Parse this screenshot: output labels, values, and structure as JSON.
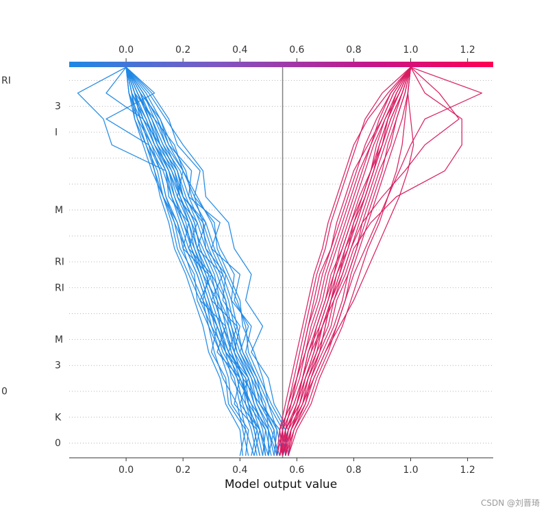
{
  "chart_data": {
    "type": "decision_plot",
    "xlabel": "Model output value",
    "xlim": [
      -0.2,
      1.29
    ],
    "xticks": [
      "0.0",
      "0.2",
      "0.4",
      "0.6",
      "0.8",
      "1.0",
      "1.2"
    ],
    "xtick_values": [
      0.0,
      0.2,
      0.4,
      0.6,
      0.8,
      1.0,
      1.2
    ],
    "base_value": 0.55,
    "colormap": [
      "#1e88e5",
      "#7e57c2",
      "#d81b60",
      "#ff0052"
    ],
    "blue_color": "#1e88e5",
    "pink_color": "#d81b60",
    "baseline_color": "#808080",
    "feature_rows": 15,
    "feature_labels": [
      "RI",
      "3",
      "I",
      "",
      "",
      "M",
      "",
      "RI",
      "RI",
      "",
      "M",
      "3",
      "0",
      "K",
      "0"
    ],
    "samples": [
      {
        "group": "low",
        "end": 0.0,
        "path": [
          0.5,
          0.52,
          0.47,
          0.45,
          0.4,
          0.43,
          0.38,
          0.4,
          0.3,
          0.33,
          0.22,
          0.23,
          0.15,
          0.12,
          0.05,
          0.0
        ]
      },
      {
        "group": "low",
        "end": 0.0,
        "path": [
          0.55,
          0.57,
          0.52,
          0.5,
          0.44,
          0.48,
          0.42,
          0.44,
          0.38,
          0.36,
          0.28,
          0.27,
          0.2,
          0.14,
          0.08,
          0.0
        ]
      },
      {
        "group": "low",
        "end": 0.0,
        "path": [
          0.45,
          0.47,
          0.4,
          0.43,
          0.36,
          0.39,
          0.3,
          0.34,
          0.25,
          0.28,
          0.2,
          0.18,
          0.12,
          0.06,
          -0.07,
          0.0
        ]
      },
      {
        "group": "low",
        "end": 0.0,
        "path": [
          0.4,
          0.42,
          0.36,
          0.35,
          0.3,
          0.32,
          0.27,
          0.29,
          0.2,
          0.22,
          0.15,
          0.14,
          -0.05,
          -0.08,
          -0.17,
          0.0
        ]
      },
      {
        "group": "low",
        "end": 0.0,
        "path": [
          0.52,
          0.53,
          0.48,
          0.46,
          0.42,
          0.44,
          0.37,
          0.38,
          0.33,
          0.3,
          0.25,
          0.2,
          0.17,
          0.1,
          0.03,
          0.0
        ]
      },
      {
        "group": "low",
        "end": 0.0,
        "path": [
          0.48,
          0.49,
          0.45,
          0.43,
          0.38,
          0.4,
          0.34,
          0.35,
          0.28,
          0.27,
          0.2,
          0.16,
          0.1,
          0.07,
          0.02,
          0.0
        ]
      },
      {
        "group": "low",
        "end": 0.0,
        "path": [
          0.56,
          0.55,
          0.5,
          0.48,
          0.45,
          0.41,
          0.4,
          0.36,
          0.32,
          0.31,
          0.24,
          0.26,
          0.18,
          0.15,
          0.09,
          0.0
        ]
      },
      {
        "group": "low",
        "end": 0.0,
        "path": [
          0.44,
          0.46,
          0.38,
          0.4,
          0.32,
          0.35,
          0.26,
          0.3,
          0.22,
          0.25,
          0.18,
          0.2,
          0.14,
          0.11,
          0.06,
          0.0
        ]
      },
      {
        "group": "low",
        "end": 0.0,
        "path": [
          0.5,
          0.47,
          0.44,
          0.4,
          0.37,
          0.34,
          0.31,
          0.28,
          0.24,
          0.2,
          0.16,
          0.13,
          0.08,
          -0.07,
          0.1,
          0.0
        ]
      },
      {
        "group": "low",
        "end": 0.0,
        "path": [
          0.53,
          0.5,
          0.49,
          0.45,
          0.41,
          0.38,
          0.36,
          0.33,
          0.29,
          0.26,
          0.22,
          0.19,
          0.13,
          0.09,
          0.04,
          0.0
        ]
      },
      {
        "group": "low",
        "end": 0.0,
        "path": [
          0.47,
          0.45,
          0.42,
          0.37,
          0.35,
          0.3,
          0.28,
          0.25,
          0.21,
          0.18,
          0.13,
          0.1,
          0.07,
          0.03,
          0.02,
          0.0
        ]
      },
      {
        "group": "low",
        "end": 0.0,
        "path": [
          0.54,
          0.51,
          0.46,
          0.44,
          0.39,
          0.37,
          0.33,
          0.31,
          0.27,
          0.23,
          0.19,
          0.17,
          0.11,
          0.08,
          0.05,
          0.0
        ]
      },
      {
        "group": "low",
        "end": 0.0,
        "path": [
          0.42,
          0.43,
          0.37,
          0.36,
          0.33,
          0.29,
          0.25,
          0.24,
          0.19,
          0.17,
          0.14,
          0.12,
          0.09,
          0.04,
          0.01,
          0.0
        ]
      },
      {
        "group": "low",
        "end": 0.0,
        "path": [
          0.51,
          0.49,
          0.43,
          0.42,
          0.36,
          0.33,
          0.32,
          0.27,
          0.23,
          0.21,
          0.17,
          0.15,
          0.1,
          0.06,
          0.02,
          0.0
        ]
      },
      {
        "group": "low",
        "end": 0.0,
        "path": [
          0.46,
          0.44,
          0.41,
          0.39,
          0.34,
          0.31,
          0.29,
          0.26,
          0.22,
          0.19,
          0.16,
          0.14,
          0.09,
          0.05,
          0.03,
          0.0
        ]
      },
      {
        "group": "low",
        "end": 0.0,
        "path": [
          0.55,
          0.54,
          0.47,
          0.41,
          0.38,
          0.36,
          0.35,
          0.3,
          0.26,
          0.24,
          0.2,
          0.18,
          0.12,
          0.09,
          0.04,
          0.0
        ]
      },
      {
        "group": "low",
        "end": 0.0,
        "path": [
          0.49,
          0.48,
          0.45,
          0.42,
          0.35,
          0.33,
          0.3,
          0.27,
          0.24,
          0.22,
          0.18,
          0.15,
          0.11,
          0.07,
          0.03,
          0.0
        ]
      },
      {
        "group": "low",
        "end": 0.0,
        "path": [
          0.43,
          0.41,
          0.39,
          0.34,
          0.31,
          0.29,
          0.27,
          0.23,
          0.2,
          0.18,
          0.14,
          0.12,
          0.08,
          0.05,
          0.01,
          0.0
        ]
      },
      {
        "group": "low",
        "end": 0.0,
        "path": [
          0.57,
          0.56,
          0.51,
          0.47,
          0.43,
          0.42,
          0.39,
          0.35,
          0.31,
          0.28,
          0.23,
          0.21,
          0.16,
          0.12,
          0.07,
          0.0
        ]
      },
      {
        "group": "low",
        "end": 0.0,
        "path": [
          0.5,
          0.5,
          0.44,
          0.39,
          0.36,
          0.32,
          0.28,
          0.25,
          0.21,
          0.17,
          0.13,
          0.11,
          0.07,
          0.04,
          0.02,
          0.0
        ]
      },
      {
        "group": "low",
        "end": 0.0,
        "path": [
          0.45,
          0.42,
          0.4,
          0.38,
          0.33,
          0.3,
          0.26,
          0.22,
          0.18,
          0.16,
          0.13,
          0.09,
          0.06,
          0.03,
          0.01,
          0.0
        ]
      },
      {
        "group": "low",
        "end": 0.0,
        "path": [
          0.53,
          0.52,
          0.48,
          0.44,
          0.4,
          0.37,
          0.35,
          0.32,
          0.28,
          0.25,
          0.21,
          0.18,
          0.14,
          0.1,
          0.06,
          0.0
        ]
      },
      {
        "group": "low",
        "end": 0.0,
        "path": [
          0.48,
          0.46,
          0.43,
          0.41,
          0.37,
          0.35,
          0.33,
          0.29,
          0.25,
          0.23,
          0.19,
          0.16,
          0.12,
          0.08,
          0.04,
          0.0
        ]
      },
      {
        "group": "low",
        "end": 0.0,
        "path": [
          0.41,
          0.4,
          0.35,
          0.33,
          0.29,
          0.27,
          0.24,
          0.21,
          0.17,
          0.15,
          0.12,
          0.1,
          0.08,
          0.05,
          0.03,
          0.0
        ]
      },
      {
        "group": "low",
        "end": 0.0,
        "path": [
          0.55,
          0.53,
          0.5,
          0.46,
          0.41,
          0.39,
          0.37,
          0.34,
          0.3,
          0.27,
          0.24,
          0.2,
          0.15,
          0.11,
          0.06,
          0.0
        ]
      },
      {
        "group": "low",
        "end": 0.0,
        "path": [
          0.52,
          0.5,
          0.46,
          0.43,
          0.39,
          0.36,
          0.32,
          0.3,
          0.26,
          0.24,
          0.2,
          0.17,
          0.13,
          0.09,
          0.05,
          0.0
        ]
      },
      {
        "group": "low",
        "end": 0.0,
        "path": [
          0.47,
          0.45,
          0.43,
          0.4,
          0.35,
          0.32,
          0.29,
          0.26,
          0.23,
          0.2,
          0.17,
          0.14,
          0.1,
          0.06,
          0.03,
          0.0
        ]
      },
      {
        "group": "low",
        "end": 0.0,
        "path": [
          0.49,
          0.47,
          0.42,
          0.41,
          0.38,
          0.34,
          0.31,
          0.28,
          0.25,
          0.22,
          0.19,
          0.15,
          0.11,
          0.08,
          0.04,
          0.0
        ]
      },
      {
        "group": "high",
        "end": 1.0,
        "path": [
          0.55,
          0.57,
          0.62,
          0.65,
          0.68,
          0.7,
          0.72,
          0.75,
          0.78,
          0.81,
          0.84,
          0.87,
          0.9,
          0.93,
          0.97,
          1.0
        ]
      },
      {
        "group": "high",
        "end": 1.0,
        "path": [
          0.55,
          0.58,
          0.63,
          0.66,
          0.7,
          0.74,
          0.77,
          0.8,
          0.84,
          0.88,
          0.92,
          0.96,
          1.0,
          1.05,
          1.25,
          1.0
        ]
      },
      {
        "group": "high",
        "end": 1.0,
        "path": [
          0.56,
          0.56,
          0.6,
          0.63,
          0.67,
          0.69,
          0.72,
          0.76,
          0.79,
          0.83,
          0.9,
          0.98,
          1.05,
          1.17,
          1.1,
          1.0
        ]
      },
      {
        "group": "high",
        "end": 1.0,
        "path": [
          0.53,
          0.55,
          0.59,
          0.62,
          0.64,
          0.68,
          0.71,
          0.73,
          0.76,
          0.79,
          0.82,
          0.86,
          0.89,
          0.92,
          0.95,
          1.0
        ]
      },
      {
        "group": "high",
        "end": 1.0,
        "path": [
          0.55,
          0.54,
          0.58,
          0.6,
          0.62,
          0.64,
          0.66,
          0.68,
          0.72,
          0.74,
          0.77,
          0.8,
          0.85,
          0.9,
          0.94,
          1.0
        ]
      },
      {
        "group": "high",
        "end": 1.0,
        "path": [
          0.57,
          0.59,
          0.64,
          0.67,
          0.71,
          0.74,
          0.77,
          0.79,
          0.82,
          0.85,
          0.88,
          0.91,
          0.94,
          0.97,
          0.99,
          1.0
        ]
      },
      {
        "group": "high",
        "end": 1.0,
        "path": [
          0.54,
          0.56,
          0.61,
          0.63,
          0.66,
          0.69,
          0.73,
          0.77,
          0.8,
          0.86,
          0.95,
          1.12,
          1.18,
          1.18,
          1.05,
          1.0
        ]
      },
      {
        "group": "high",
        "end": 1.0,
        "path": [
          0.55,
          0.55,
          0.57,
          0.59,
          0.61,
          0.63,
          0.65,
          0.67,
          0.7,
          0.72,
          0.75,
          0.78,
          0.81,
          0.84,
          0.9,
          1.0
        ]
      },
      {
        "group": "high",
        "end": 1.0,
        "path": [
          0.56,
          0.58,
          0.62,
          0.64,
          0.68,
          0.72,
          0.74,
          0.78,
          0.81,
          0.83,
          0.86,
          0.89,
          0.93,
          0.95,
          0.98,
          1.0
        ]
      },
      {
        "group": "high",
        "end": 1.0,
        "path": [
          0.55,
          0.57,
          0.6,
          0.62,
          0.65,
          0.67,
          0.7,
          0.73,
          0.75,
          0.78,
          0.81,
          0.84,
          0.87,
          0.91,
          0.96,
          1.0
        ]
      },
      {
        "group": "high",
        "end": 1.0,
        "path": [
          0.53,
          0.54,
          0.58,
          0.61,
          0.63,
          0.66,
          0.69,
          0.71,
          0.74,
          0.77,
          0.8,
          0.83,
          0.86,
          0.89,
          0.93,
          1.0
        ]
      },
      {
        "group": "high",
        "end": 1.0,
        "path": [
          0.57,
          0.6,
          0.65,
          0.68,
          0.72,
          0.76,
          0.79,
          0.82,
          0.85,
          0.89,
          0.92,
          0.95,
          0.97,
          0.98,
          0.99,
          1.0
        ]
      },
      {
        "group": "high",
        "end": 1.0,
        "path": [
          0.54,
          0.55,
          0.59,
          0.62,
          0.64,
          0.67,
          0.7,
          0.72,
          0.76,
          0.79,
          0.83,
          0.86,
          0.88,
          0.91,
          0.95,
          1.0
        ]
      },
      {
        "group": "high",
        "end": 1.0,
        "path": [
          0.55,
          0.56,
          0.61,
          0.64,
          0.67,
          0.71,
          0.73,
          0.76,
          0.79,
          0.82,
          0.85,
          0.88,
          0.91,
          0.94,
          0.97,
          1.0
        ]
      },
      {
        "group": "high",
        "end": 1.0,
        "path": [
          0.56,
          0.57,
          0.6,
          0.63,
          0.66,
          0.68,
          0.71,
          0.74,
          0.78,
          0.8,
          0.84,
          0.87,
          0.9,
          0.92,
          0.96,
          1.0
        ]
      },
      {
        "group": "high",
        "end": 1.0,
        "path": [
          0.54,
          0.56,
          0.58,
          0.6,
          0.63,
          0.65,
          0.68,
          0.7,
          0.73,
          0.76,
          0.79,
          0.82,
          0.86,
          0.9,
          0.94,
          1.0
        ]
      },
      {
        "group": "high",
        "end": 1.0,
        "path": [
          0.55,
          0.54,
          0.56,
          0.58,
          0.6,
          0.62,
          0.64,
          0.66,
          0.69,
          0.71,
          0.74,
          0.77,
          0.8,
          0.85,
          0.92,
          1.0
        ]
      },
      {
        "group": "high",
        "end": 1.0,
        "path": [
          0.56,
          0.59,
          0.63,
          0.65,
          0.69,
          0.73,
          0.76,
          0.78,
          0.81,
          0.84,
          0.87,
          0.9,
          0.92,
          0.95,
          0.98,
          1.0
        ]
      },
      {
        "group": "high",
        "end": 1.0,
        "path": [
          0.53,
          0.55,
          0.57,
          0.6,
          0.62,
          0.64,
          0.67,
          0.69,
          0.72,
          0.75,
          0.78,
          0.81,
          0.84,
          0.88,
          0.93,
          1.0
        ]
      },
      {
        "group": "high",
        "end": 1.0,
        "path": [
          0.55,
          0.58,
          0.62,
          0.66,
          0.7,
          0.75,
          0.8,
          0.84,
          0.88,
          0.92,
          0.96,
          0.99,
          1.01,
          1.0,
          0.99,
          1.0
        ]
      },
      {
        "group": "high",
        "end": 1.0,
        "path": [
          0.57,
          0.58,
          0.61,
          0.64,
          0.68,
          0.7,
          0.72,
          0.75,
          0.77,
          0.8,
          0.83,
          0.86,
          0.9,
          0.93,
          0.97,
          1.0
        ]
      },
      {
        "group": "high",
        "end": 1.0,
        "path": [
          0.54,
          0.57,
          0.6,
          0.62,
          0.65,
          0.69,
          0.72,
          0.74,
          0.77,
          0.81,
          0.84,
          0.87,
          0.89,
          0.92,
          0.96,
          1.0
        ]
      }
    ]
  },
  "watermark": "CSDN @刘晋琦"
}
